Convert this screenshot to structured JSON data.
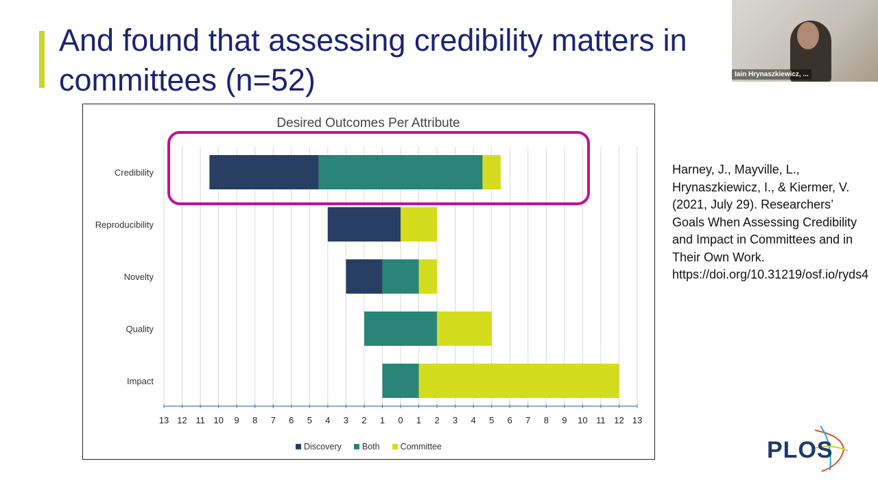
{
  "slide": {
    "title": "And found that assessing credibility matters in\ncommittees (n=52)",
    "citation": "Harney, J., Mayville, L., Hrynaszkiewicz, I., & Kiermer, V. (2021, July 29). Researchers’ Goals When Assessing Credibility and Impact in Committees and in Their Own Work. https://doi.org/10.31219/osf.io/ryds4",
    "logo_text": "PLOS",
    "accent_color": "#c9d52a",
    "highlight_color": "#c0109c"
  },
  "webcam": {
    "participant_name": "Iain Hrynaszkiewicz, ..."
  },
  "chart_data": {
    "type": "bar",
    "orientation": "horizontal-diverging-stacked",
    "title": "Desired Outcomes Per Attribute",
    "categories": [
      "Credibility",
      "Reproducibility",
      "Novelty",
      "Quality",
      "Impact"
    ],
    "series": [
      {
        "name": "Discovery",
        "color": "#283f63",
        "values": [
          6,
          4,
          2,
          0,
          0
        ]
      },
      {
        "name": "Both",
        "color": "#2a8478",
        "values": [
          9,
          0,
          2,
          4,
          2
        ]
      },
      {
        "name": "Committee",
        "color": "#d4dc1e",
        "values": [
          1,
          2,
          1,
          3,
          11
        ]
      }
    ],
    "xlim": [
      -13,
      13
    ],
    "x_tick_labels": [
      "13",
      "12",
      "11",
      "10",
      "9",
      "8",
      "7",
      "6",
      "5",
      "4",
      "3",
      "2",
      "1",
      "0",
      "1",
      "2",
      "3",
      "4",
      "5",
      "6",
      "7",
      "8",
      "9",
      "10",
      "11",
      "12",
      "13"
    ],
    "grid": true,
    "legend_position": "bottom",
    "highlighted_category": "Credibility"
  }
}
